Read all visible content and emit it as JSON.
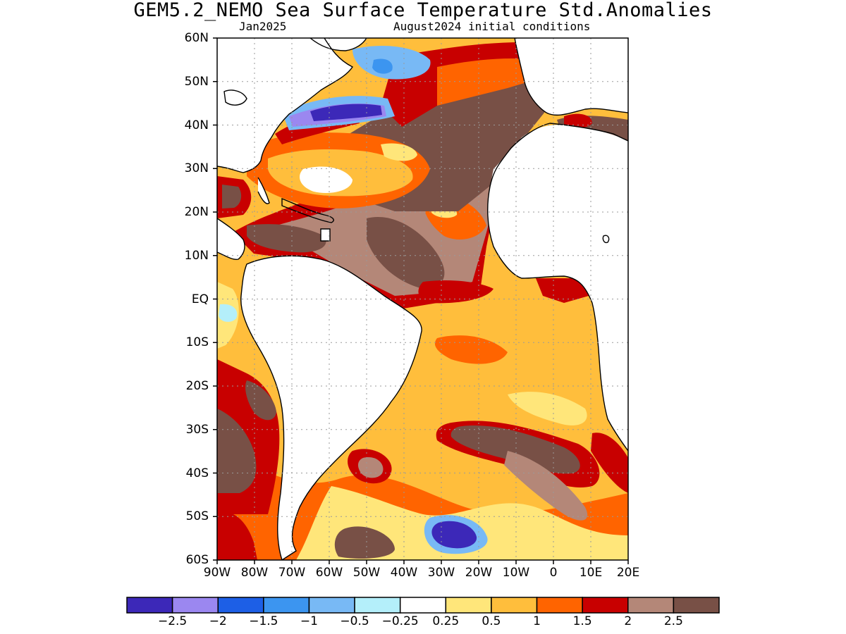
{
  "title": "GEM5.2_NEMO Sea Surface Temperature Std.Anomalies",
  "subtitle_left": "Jan2025",
  "subtitle_right": "August2024 initial conditions",
  "lat_labels": [
    "60N",
    "50N",
    "40N",
    "30N",
    "20N",
    "10N",
    "EQ",
    "10S",
    "20S",
    "30S",
    "40S",
    "50S",
    "60S"
  ],
  "lon_labels": [
    "90W",
    "80W",
    "70W",
    "60W",
    "50W",
    "40W",
    "30W",
    "20W",
    "10W",
    "0",
    "10E",
    "20E"
  ],
  "colorbar": {
    "labels": [
      "-2.5",
      "-2",
      "-1.5",
      "-1",
      "-0.5",
      "-0.25",
      "0.25",
      "0.5",
      "1",
      "1.5",
      "2",
      "2.5"
    ],
    "colors": [
      "#3c28b8",
      "#9b87f0",
      "#1d5fe6",
      "#3c95f0",
      "#78b9f5",
      "#b4effa",
      "#ffffff",
      "#ffe67a",
      "#ffbe3c",
      "#ff6400",
      "#c80000",
      "#b48778",
      "#785046"
    ]
  },
  "map_region": {
    "lon_range": [
      -90,
      20
    ],
    "lat_range": [
      -60,
      60
    ]
  },
  "colors": {
    "land": "#ffffff",
    "coast": "#000000",
    "grid": "#9a9a9a"
  }
}
